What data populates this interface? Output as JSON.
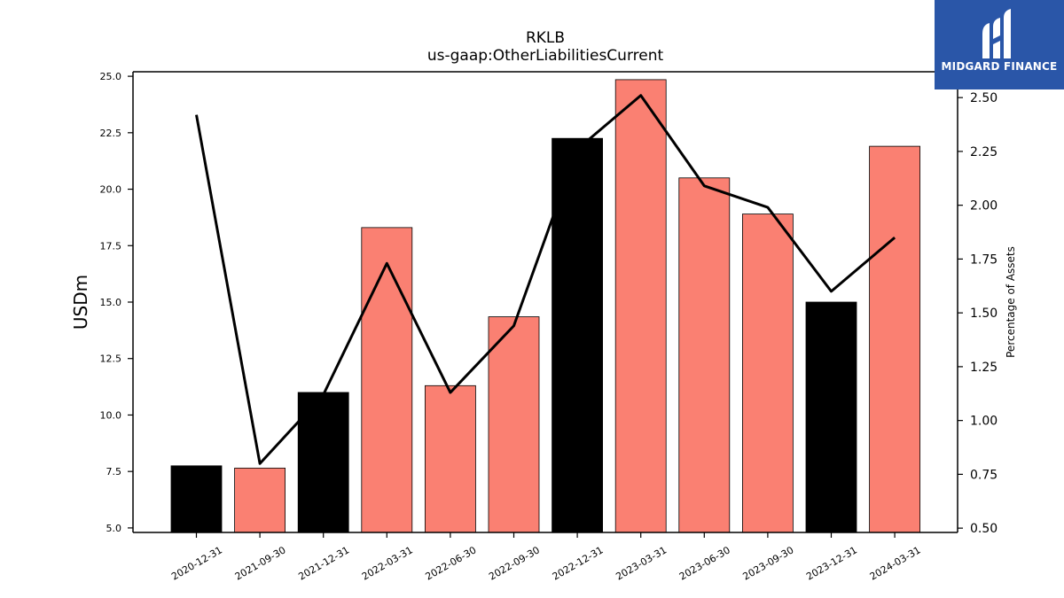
{
  "chart_data": {
    "type": "bar",
    "title": "RKLB",
    "subtitle": "us-gaap:OtherLiabilitiesCurrent",
    "ylabel": "USDm",
    "y2label": "Percentage of Assets",
    "categories": [
      "2020-12-31",
      "2021-09-30",
      "2021-12-31",
      "2022-03-31",
      "2022-06-30",
      "2022-09-30",
      "2022-12-31",
      "2023-03-31",
      "2023-06-30",
      "2023-09-30",
      "2023-12-31",
      "2024-03-31"
    ],
    "values": [
      7.75,
      7.65,
      11.0,
      18.3,
      11.3,
      14.35,
      22.25,
      24.85,
      20.5,
      18.9,
      15.0,
      21.9
    ],
    "bar_colors": [
      "#000000",
      "#fa8072",
      "#000000",
      "#fa8072",
      "#fa8072",
      "#fa8072",
      "#000000",
      "#fa8072",
      "#fa8072",
      "#fa8072",
      "#000000",
      "#fa8072"
    ],
    "line_series": {
      "axis": "right",
      "values": [
        2.42,
        0.8,
        1.12,
        1.73,
        1.13,
        1.44,
        2.26,
        2.51,
        2.09,
        1.99,
        1.6,
        1.85
      ],
      "color": "#000000"
    },
    "ylim": [
      4.8,
      25.2
    ],
    "y2lim": [
      0.48,
      2.62
    ],
    "yticks": [
      "5.0",
      "7.5",
      "10.0",
      "12.5",
      "15.0",
      "17.5",
      "20.0",
      "22.5",
      "25.0"
    ],
    "yticks_values": [
      5.0,
      7.5,
      10.0,
      12.5,
      15.0,
      17.5,
      20.0,
      22.5,
      25.0
    ],
    "y2ticks": [
      "0.50",
      "0.75",
      "1.00",
      "1.25",
      "1.50",
      "1.75",
      "2.00",
      "2.25",
      "2.50"
    ],
    "y2ticks_values": [
      0.5,
      0.75,
      1.0,
      1.25,
      1.5,
      1.75,
      2.0,
      2.25,
      2.5
    ],
    "grid": false,
    "legend": "none"
  },
  "logo": {
    "text": "MIDGARD FINANCE",
    "background": "#2a56a8",
    "icon": "midgard-logo-icon"
  }
}
